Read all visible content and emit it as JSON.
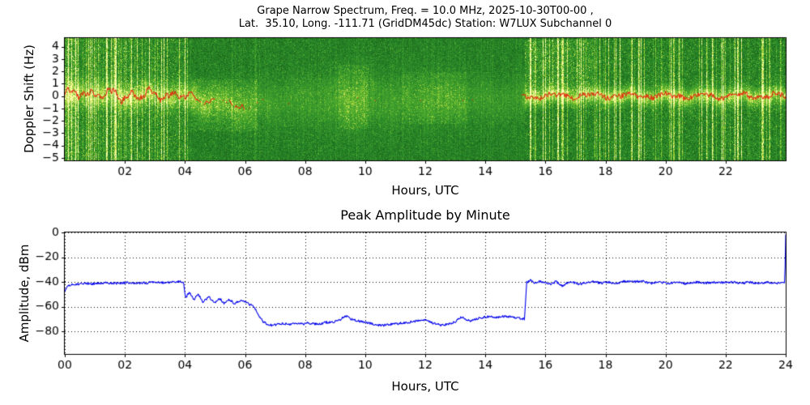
{
  "chart_data": [
    {
      "type": "heatmap",
      "title_lines": [
        "Grape Narrow Spectrum, Freq. = 10.0 MHz, 2025-10-30T00-00 ,",
        "Lat.  35.10, Long. -111.71 (GridDM45dc) Station: W7LUX Subchannel 0"
      ],
      "xlabel": "Hours, UTC",
      "ylabel": "Doppler Shift (Hz)",
      "xlim": [
        0,
        24
      ],
      "ylim": [
        -5.2,
        4.7
      ],
      "xticks": [
        2,
        4,
        6,
        8,
        10,
        12,
        14,
        16,
        18,
        20,
        22
      ],
      "xtick_labels": [
        "02",
        "04",
        "06",
        "08",
        "10",
        "12",
        "14",
        "16",
        "18",
        "20",
        "22"
      ],
      "yticks": [
        4,
        3,
        2,
        1,
        0,
        -1,
        -2,
        -3,
        -4,
        -5
      ],
      "ytick_labels": [
        "4",
        "3",
        "2",
        "1",
        "0",
        "−1",
        "−2",
        "−3",
        "−4",
        "−5"
      ],
      "description": "10 MHz Doppler spectrogram: green noise background with bright yellow carrier band near 0 Hz and red peak-frequency trace; strong signal with vertical interference streaks 00:00-04:00 and 15:20-24:00 UTC, weak diffuse signal drifting to about -0.5 Hz between 04:00 and 15:20 UTC.",
      "colormap": [
        [
          0,
          "#0a3c0a"
        ],
        [
          0.35,
          "#2a8a2a"
        ],
        [
          0.6,
          "#55b12e"
        ],
        [
          0.78,
          "#a8d63c"
        ],
        [
          0.9,
          "#e4ef62"
        ],
        [
          1,
          "#ffffb4"
        ]
      ],
      "trace_color": "#e03010",
      "render": {
        "base_profile": [
          [
            0,
            0.36
          ],
          [
            4,
            0.36
          ],
          [
            4.1,
            0.3
          ],
          [
            15.2,
            0.3
          ],
          [
            15.35,
            0.32
          ],
          [
            24,
            0.32
          ]
        ],
        "noise_profile": [
          [
            0,
            0.3
          ],
          [
            4,
            0.3
          ],
          [
            4.1,
            0.2
          ],
          [
            15.2,
            0.18
          ],
          [
            15.35,
            0.26
          ],
          [
            24,
            0.26
          ]
        ],
        "streak_profile": [
          [
            0,
            0.55
          ],
          [
            4.0,
            0.5
          ],
          [
            4.15,
            0.12
          ],
          [
            6.3,
            0.12
          ],
          [
            6.6,
            0.06
          ],
          [
            15.2,
            0.05
          ],
          [
            15.35,
            0.5
          ],
          [
            24,
            0.5
          ]
        ],
        "band_profile": [
          [
            0,
            0.55
          ],
          [
            4,
            0.5
          ],
          [
            4.6,
            0.45
          ],
          [
            5.5,
            0.35
          ],
          [
            6.5,
            0.2
          ],
          [
            7.5,
            0.18
          ],
          [
            8.5,
            0.2
          ],
          [
            9.4,
            0.3
          ],
          [
            9.8,
            0.32
          ],
          [
            10.5,
            0.22
          ],
          [
            11.5,
            0.18
          ],
          [
            12.4,
            0.24
          ],
          [
            13,
            0.26
          ],
          [
            13.6,
            0.18
          ],
          [
            14.5,
            0.15
          ],
          [
            15.2,
            0.15
          ],
          [
            15.4,
            0.6
          ],
          [
            17,
            0.58
          ],
          [
            24,
            0.55
          ]
        ],
        "width_profile": [
          [
            0,
            0.7
          ],
          [
            4,
            0.7
          ],
          [
            5,
            0.9
          ],
          [
            7,
            1.2
          ],
          [
            9.5,
            1.5
          ],
          [
            12,
            1.3
          ],
          [
            15.2,
            1.1
          ],
          [
            15.4,
            0.45
          ],
          [
            24,
            0.5
          ]
        ],
        "center_profile": [
          [
            0,
            0.1
          ],
          [
            1,
            0.2
          ],
          [
            2,
            0.0
          ],
          [
            3,
            0.15
          ],
          [
            4,
            0.0
          ],
          [
            4.6,
            -0.4
          ],
          [
            5.4,
            -0.6
          ],
          [
            6,
            -0.8
          ],
          [
            7,
            -0.5
          ],
          [
            8,
            -0.3
          ],
          [
            9,
            -0.4
          ],
          [
            10,
            -0.3
          ],
          [
            11,
            -0.4
          ],
          [
            12,
            -0.3
          ],
          [
            13,
            -0.2
          ],
          [
            14,
            -0.3
          ],
          [
            15.2,
            -0.2
          ],
          [
            15.4,
            0.0
          ],
          [
            18,
            0.05
          ],
          [
            21,
            0.0
          ],
          [
            24,
            0.05
          ]
        ],
        "trace_profile": [
          [
            0,
            1
          ],
          [
            4.2,
            1
          ],
          [
            4.3,
            0.35
          ],
          [
            6.0,
            0.3
          ],
          [
            6.3,
            0.05
          ],
          [
            15.1,
            0.0
          ],
          [
            15.3,
            0.2
          ],
          [
            15.4,
            1
          ],
          [
            24,
            1
          ]
        ],
        "hotspots": [
          {
            "h0": 0,
            "h1": 0.45,
            "d0": -5.2,
            "d1": 4.7,
            "amp": 0.22
          },
          {
            "h0": 15.3,
            "h1": 17.6,
            "d0": 0.3,
            "d1": 4.6,
            "amp": 0.15
          },
          {
            "h0": 9.1,
            "h1": 10.1,
            "d0": -2.6,
            "d1": 2.6,
            "amp": 0.1
          },
          {
            "h0": 4.2,
            "h1": 6.4,
            "d0": -2.8,
            "d1": 1.4,
            "amp": 0.1
          },
          {
            "h0": 11.2,
            "h1": 13.4,
            "d0": -2.2,
            "d1": 2.0,
            "amp": 0.07
          }
        ]
      }
    },
    {
      "type": "line",
      "title": "Peak Amplitude by Minute",
      "xlabel": "Hours, UTC",
      "ylabel": "Amplitude, dBm",
      "xlim": [
        0,
        24
      ],
      "ylim": [
        -98,
        0
      ],
      "xticks": [
        0,
        2,
        4,
        6,
        8,
        10,
        12,
        14,
        16,
        18,
        20,
        22,
        24
      ],
      "xtick_labels": [
        "00",
        "02",
        "04",
        "06",
        "08",
        "10",
        "12",
        "14",
        "16",
        "18",
        "20",
        "22",
        "24"
      ],
      "yticks": [
        0,
        -20,
        -40,
        -60,
        -80
      ],
      "ytick_labels": [
        "0",
        "−20",
        "−40",
        "−60",
        "−80"
      ],
      "grid": true,
      "line_color": "#0000ee",
      "jitter_db": 0.9,
      "series": [
        {
          "name": "peak amplitude (dBm)",
          "points": [
            [
              0.0,
              -48
            ],
            [
              0.08,
              -43
            ],
            [
              0.3,
              -42
            ],
            [
              0.7,
              -41
            ],
            [
              1.0,
              -41.5
            ],
            [
              1.3,
              -40.5
            ],
            [
              1.7,
              -41
            ],
            [
              2.0,
              -40.5
            ],
            [
              2.4,
              -41
            ],
            [
              2.8,
              -40.5
            ],
            [
              3.2,
              -40.5
            ],
            [
              3.6,
              -40
            ],
            [
              3.95,
              -39.5
            ],
            [
              4.02,
              -53
            ],
            [
              4.15,
              -48
            ],
            [
              4.3,
              -54
            ],
            [
              4.45,
              -50
            ],
            [
              4.6,
              -56
            ],
            [
              4.8,
              -52
            ],
            [
              5.0,
              -57
            ],
            [
              5.15,
              -53
            ],
            [
              5.3,
              -57
            ],
            [
              5.5,
              -54
            ],
            [
              5.65,
              -58
            ],
            [
              5.8,
              -55
            ],
            [
              6.0,
              -56
            ],
            [
              6.15,
              -58
            ],
            [
              6.3,
              -60
            ],
            [
              6.45,
              -67
            ],
            [
              6.6,
              -72
            ],
            [
              6.75,
              -74
            ],
            [
              6.9,
              -75
            ],
            [
              7.1,
              -74
            ],
            [
              7.3,
              -73.5
            ],
            [
              7.5,
              -74
            ],
            [
              7.7,
              -73
            ],
            [
              7.9,
              -74
            ],
            [
              8.1,
              -73
            ],
            [
              8.4,
              -74
            ],
            [
              8.7,
              -72.5
            ],
            [
              9.0,
              -72
            ],
            [
              9.2,
              -70
            ],
            [
              9.35,
              -67
            ],
            [
              9.5,
              -69.5
            ],
            [
              9.7,
              -71
            ],
            [
              9.9,
              -72
            ],
            [
              10.1,
              -73
            ],
            [
              10.35,
              -74.5
            ],
            [
              10.6,
              -75
            ],
            [
              10.85,
              -74
            ],
            [
              11.1,
              -73.5
            ],
            [
              11.4,
              -72.5
            ],
            [
              11.7,
              -71.5
            ],
            [
              11.95,
              -70.5
            ],
            [
              12.15,
              -72
            ],
            [
              12.35,
              -74
            ],
            [
              12.55,
              -75
            ],
            [
              12.8,
              -73.5
            ],
            [
              13.0,
              -72
            ],
            [
              13.2,
              -68
            ],
            [
              13.35,
              -70
            ],
            [
              13.5,
              -71.5
            ],
            [
              13.7,
              -70
            ],
            [
              13.9,
              -68.5
            ],
            [
              14.1,
              -68
            ],
            [
              14.35,
              -68.5
            ],
            [
              14.6,
              -67.5
            ],
            [
              14.85,
              -68
            ],
            [
              15.05,
              -69
            ],
            [
              15.2,
              -69.5
            ],
            [
              15.3,
              -70
            ],
            [
              15.34,
              -55
            ],
            [
              15.38,
              -40
            ],
            [
              15.5,
              -38.5
            ],
            [
              15.65,
              -41
            ],
            [
              15.8,
              -39.5
            ],
            [
              16.0,
              -40.5
            ],
            [
              16.2,
              -42
            ],
            [
              16.35,
              -39.5
            ],
            [
              16.55,
              -43
            ],
            [
              16.7,
              -41
            ],
            [
              16.9,
              -40
            ],
            [
              17.1,
              -42
            ],
            [
              17.35,
              -40.5
            ],
            [
              17.6,
              -39.5
            ],
            [
              17.85,
              -41
            ],
            [
              18.1,
              -40
            ],
            [
              18.35,
              -41.5
            ],
            [
              18.6,
              -39.5
            ],
            [
              18.9,
              -40
            ],
            [
              19.2,
              -39
            ],
            [
              19.5,
              -41
            ],
            [
              19.8,
              -40
            ],
            [
              20.1,
              -41
            ],
            [
              20.4,
              -40
            ],
            [
              20.7,
              -41.5
            ],
            [
              21.0,
              -40
            ],
            [
              21.3,
              -41
            ],
            [
              21.6,
              -40
            ],
            [
              21.9,
              -40.5
            ],
            [
              22.2,
              -40
            ],
            [
              22.5,
              -41
            ],
            [
              22.8,
              -40
            ],
            [
              23.1,
              -41
            ],
            [
              23.4,
              -40
            ],
            [
              23.7,
              -41
            ],
            [
              23.9,
              -40
            ],
            [
              23.97,
              -40
            ],
            [
              24.0,
              -1.5
            ]
          ]
        }
      ]
    }
  ]
}
